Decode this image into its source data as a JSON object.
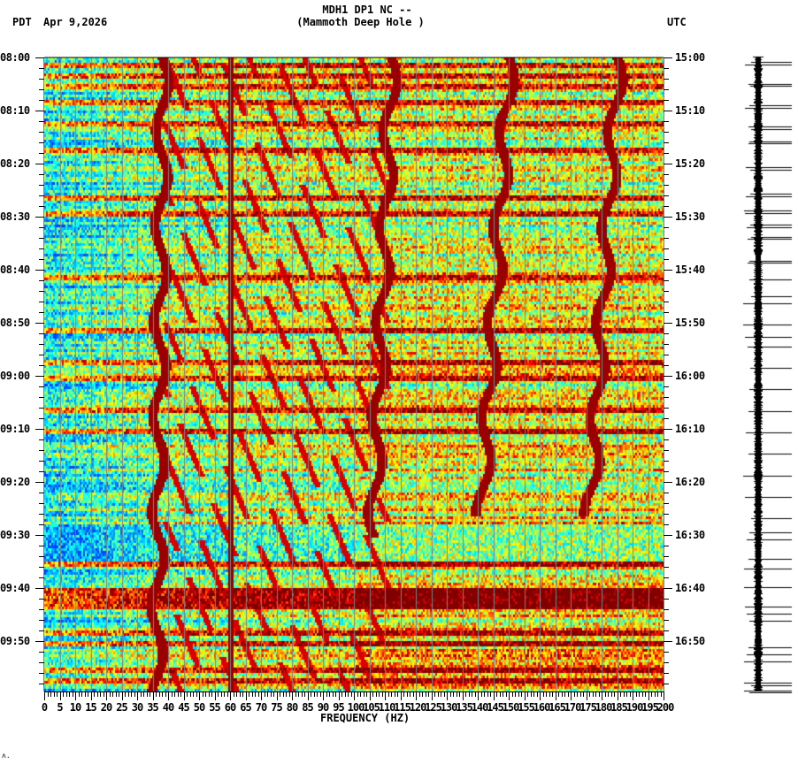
{
  "header": {
    "station_line": "MDH1 DP1 NC --",
    "location_line": "(Mammoth Deep Hole )",
    "left_timezone": "PDT",
    "date": "Apr 9,2026",
    "right_timezone": "UTC"
  },
  "footer": {
    "corner_mark": "ʌ."
  },
  "colors": {
    "axis": "#000000",
    "grid": "#808080",
    "colormap": [
      "#0040ff",
      "#00a0ff",
      "#00ffff",
      "#80ff80",
      "#ffff00",
      "#ff8000",
      "#ff0000",
      "#800000"
    ]
  },
  "chart_data": {
    "type": "heatmap",
    "title": "MDH1 DP1 NC -- (Mammoth Deep Hole )",
    "subtitle": "Apr 9,2026",
    "xlabel": "FREQUENCY (HZ)",
    "ylabel_left": "PDT",
    "ylabel_right": "UTC",
    "xlim": [
      0,
      200
    ],
    "x_ticks": [
      "0",
      "5",
      "10",
      "15",
      "20",
      "25",
      "30",
      "35",
      "40",
      "45",
      "50",
      "55",
      "60",
      "65",
      "70",
      "75",
      "80",
      "85",
      "90",
      "95",
      "100",
      "105",
      "110",
      "115",
      "120",
      "125",
      "130",
      "135",
      "140",
      "145",
      "150",
      "155",
      "160",
      "165",
      "170",
      "175",
      "180",
      "185",
      "190",
      "195",
      "200"
    ],
    "x_minor_step": 1,
    "grid": {
      "vertical_every_hz": 5
    },
    "y_ticks_left": [
      "08:00",
      "08:10",
      "08:20",
      "08:30",
      "08:40",
      "08:50",
      "09:00",
      "09:10",
      "09:20",
      "09:30",
      "09:40",
      "09:50"
    ],
    "y_ticks_right": [
      "15:00",
      "15:10",
      "15:20",
      "15:30",
      "15:40",
      "15:50",
      "16:00",
      "16:10",
      "16:20",
      "16:30",
      "16:40",
      "16:50"
    ],
    "y_minor_step_min": 2,
    "time_range_minutes": [
      0,
      119.5
    ],
    "persistent_lines_hz": [
      60
    ],
    "gliding_tracks": [
      {
        "name": "track-near-37Hz",
        "hz_start": 38,
        "hz_end": 36,
        "t_start": 0,
        "t_end": 119
      },
      {
        "name": "track-near-108Hz",
        "hz_start": 112,
        "hz_end": 106,
        "t_start": 0,
        "t_end": 90
      },
      {
        "name": "track-near-143Hz",
        "hz_start": 150,
        "hz_end": 141,
        "t_start": 0,
        "t_end": 86
      },
      {
        "name": "track-near-177Hz",
        "hz_start": 185,
        "hz_end": 176,
        "t_start": 0,
        "t_end": 86
      }
    ],
    "high_energy_rows_min": [
      1,
      3,
      5,
      8,
      12,
      17,
      26,
      29,
      41,
      51,
      57,
      60,
      66,
      70,
      88,
      95,
      101,
      102,
      103,
      108,
      110,
      115,
      117
    ],
    "quiet_band_minutes": [
      [
        88,
        95
      ]
    ],
    "loud_band_minutes": [
      [
        100,
        104
      ]
    ],
    "seismogram_spikes_min": [
      2,
      3,
      11,
      12,
      20,
      21,
      29,
      30,
      35,
      36,
      46,
      47,
      57,
      58,
      64,
      65,
      70,
      71,
      75,
      76,
      85,
      86,
      93,
      100,
      103,
      112,
      117,
      121,
      130,
      139,
      148,
      157,
      166,
      175,
      184,
      193,
      199,
      202,
      210,
      214,
      222,
      230,
      233,
      236,
      247,
      250,
      253,
      262,
      263,
      266
    ]
  }
}
